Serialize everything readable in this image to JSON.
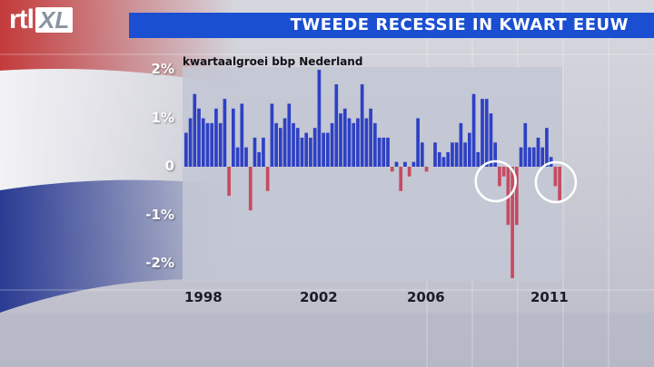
{
  "header": {
    "logo_rtl": "rtl",
    "logo_xl": "XL",
    "title": "TWEEDE RECESSIE IN KWART EEUW"
  },
  "colors": {
    "title_bar": "#1b4fd1",
    "positive": "#2e41c4",
    "negative": "#c64b60",
    "plot_bg": "#c3c6d4",
    "flag_red": "#c43a3a",
    "flag_blue": "#2a3b93"
  },
  "chart_data": {
    "type": "bar",
    "title": "",
    "subtitle": "kwartaalgroei bbp Nederland",
    "xlabel": "",
    "ylabel": "",
    "ylim": [
      -2.5,
      2.2
    ],
    "yticks": [
      {
        "value": 2,
        "label": "2%"
      },
      {
        "value": 1,
        "label": "1%"
      },
      {
        "value": 0,
        "label": "0"
      },
      {
        "value": -1,
        "label": "-1%"
      },
      {
        "value": -2,
        "label": "-2%"
      }
    ],
    "xticks": [
      "1998",
      "2002",
      "2006",
      "2011"
    ],
    "annotations": [
      "circle around 2008-2009 contraction",
      "circle around 2011 contraction"
    ],
    "values": [
      0.7,
      1.0,
      1.5,
      1.2,
      1.0,
      0.9,
      0.9,
      1.2,
      0.9,
      1.4,
      -0.6,
      1.2,
      0.4,
      1.3,
      0.4,
      -0.9,
      0.6,
      0.3,
      0.6,
      -0.5,
      1.3,
      0.9,
      0.8,
      1.0,
      1.3,
      0.9,
      0.8,
      0.6,
      0.7,
      0.6,
      0.8,
      2.0,
      0.7,
      0.7,
      0.9,
      1.7,
      1.1,
      1.2,
      1.0,
      0.9,
      1.0,
      1.7,
      1.0,
      1.2,
      0.9,
      0.6,
      0.6,
      0.6,
      -0.1,
      0.1,
      -0.5,
      0.1,
      -0.2,
      0.1,
      1.0,
      0.5,
      -0.1,
      0.0,
      0.5,
      0.3,
      0.2,
      0.3,
      0.5,
      0.5,
      0.9,
      0.5,
      0.7,
      1.5,
      0.3,
      1.4,
      1.4,
      1.1,
      0.5,
      -0.4,
      -0.2,
      -1.2,
      -2.3,
      -1.2,
      0.4,
      0.9,
      0.4,
      0.4,
      0.6,
      0.4,
      0.8,
      0.2,
      -0.4,
      -0.7
    ]
  }
}
